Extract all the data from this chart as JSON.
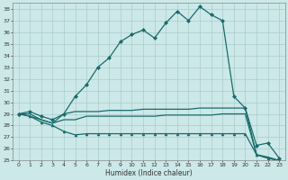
{
  "xlabel": "Humidex (Indice chaleur)",
  "ylabel": "",
  "bg_color": "#cce8e8",
  "grid_color": "#aacccc",
  "line_color": "#1a6b6b",
  "xlim": [
    -0.5,
    23.5
  ],
  "ylim": [
    25,
    38.5
  ],
  "yticks": [
    25,
    26,
    27,
    28,
    29,
    30,
    31,
    32,
    33,
    34,
    35,
    36,
    37,
    38
  ],
  "xticks": [
    0,
    1,
    2,
    3,
    4,
    5,
    6,
    7,
    8,
    9,
    10,
    11,
    12,
    13,
    14,
    15,
    16,
    17,
    18,
    19,
    20,
    21,
    22,
    23
  ],
  "series": [
    {
      "x": [
        0,
        1,
        2,
        3,
        4,
        5,
        6,
        7,
        8,
        9,
        10,
        11,
        12,
        13,
        14,
        15,
        16,
        17,
        18,
        19,
        20,
        21,
        22,
        23
      ],
      "y": [
        29.0,
        29.2,
        28.8,
        28.5,
        29.0,
        30.5,
        31.5,
        33.0,
        33.8,
        35.2,
        35.8,
        36.2,
        35.5,
        36.8,
        37.8,
        37.0,
        38.2,
        37.5,
        37.0,
        30.5,
        29.5,
        26.3,
        26.5,
        25.2
      ],
      "marker": "D",
      "markersize": 2.0,
      "linewidth": 0.9
    },
    {
      "x": [
        0,
        1,
        2,
        3,
        4,
        5,
        6,
        7,
        8,
        9,
        10,
        11,
        12,
        13,
        14,
        15,
        16,
        17,
        18,
        19,
        20,
        21,
        22,
        23
      ],
      "y": [
        29.0,
        29.0,
        28.5,
        28.2,
        29.0,
        29.2,
        29.2,
        29.2,
        29.3,
        29.3,
        29.3,
        29.4,
        29.4,
        29.4,
        29.4,
        29.4,
        29.5,
        29.5,
        29.5,
        29.5,
        29.5,
        25.5,
        25.3,
        25.0
      ],
      "marker": null,
      "markersize": 0,
      "linewidth": 0.9
    },
    {
      "x": [
        0,
        1,
        2,
        3,
        4,
        5,
        6,
        7,
        8,
        9,
        10,
        11,
        12,
        13,
        14,
        15,
        16,
        17,
        18,
        19,
        20,
        21,
        22,
        23
      ],
      "y": [
        29.0,
        28.8,
        28.5,
        28.2,
        28.5,
        28.5,
        28.8,
        28.8,
        28.8,
        28.8,
        28.8,
        28.8,
        28.8,
        28.9,
        28.9,
        28.9,
        28.9,
        28.9,
        29.0,
        29.0,
        29.0,
        25.5,
        25.2,
        25.0
      ],
      "marker": null,
      "markersize": 0,
      "linewidth": 0.9
    },
    {
      "x": [
        0,
        1,
        2,
        3,
        4,
        5,
        6,
        7,
        8,
        9,
        10,
        11,
        12,
        13,
        14,
        15,
        16,
        17,
        18,
        19,
        20,
        21,
        22,
        23
      ],
      "y": [
        29.0,
        28.8,
        28.3,
        28.0,
        27.5,
        27.2,
        27.3,
        27.3,
        27.3,
        27.3,
        27.3,
        27.3,
        27.3,
        27.3,
        27.3,
        27.3,
        27.3,
        27.3,
        27.3,
        27.3,
        27.3,
        25.5,
        25.2,
        25.0
      ],
      "marker": "^",
      "markersize": 2.0,
      "linewidth": 0.9
    }
  ]
}
